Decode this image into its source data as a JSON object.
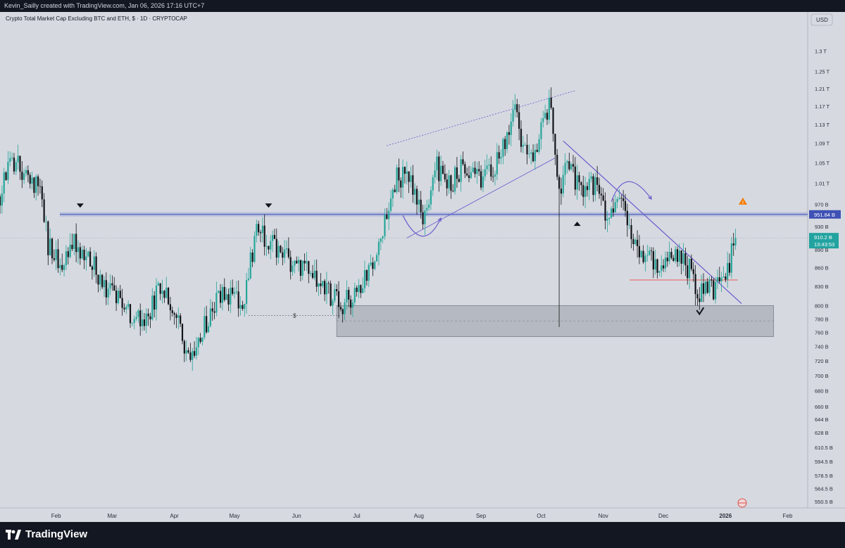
{
  "header": {
    "credit": "Kevin_Sailly created with TradingView.com, Jan 06, 2026 17:16 UTC+7"
  },
  "chart_title": "Crypto Total Market Cap Excluding BTC and ETH, $ · 1D · CRYPTOCAP",
  "currency_label": "USD",
  "brand": "TradingView",
  "colors": {
    "background": "#d6d9e0",
    "up": "#26a69a",
    "down": "#111418",
    "trendline": "#6a5acd",
    "support_line": "#e57373",
    "current_price": "#22a3a0",
    "level_tag": "#3f51b5",
    "zone": "#9aa0aa"
  },
  "chart_data": {
    "type": "candlestick",
    "y_scale": "log",
    "ylim_billions": [
      544,
      1400
    ],
    "y_ticks": [
      {
        "label": "1.3 T",
        "value": 1300
      },
      {
        "label": "1.25 T",
        "value": 1250
      },
      {
        "label": "1.21 T",
        "value": 1210
      },
      {
        "label": "1.17 T",
        "value": 1170
      },
      {
        "label": "1.13 T",
        "value": 1130
      },
      {
        "label": "1.09 T",
        "value": 1090
      },
      {
        "label": "1.05 T",
        "value": 1050
      },
      {
        "label": "1.01 T",
        "value": 1010
      },
      {
        "label": "970 B",
        "value": 970
      },
      {
        "label": "930 B",
        "value": 930
      },
      {
        "label": "890 B",
        "value": 890
      },
      {
        "label": "860 B",
        "value": 860
      },
      {
        "label": "830 B",
        "value": 830
      },
      {
        "label": "800 B",
        "value": 800
      },
      {
        "label": "780 B",
        "value": 780
      },
      {
        "label": "760 B",
        "value": 760
      },
      {
        "label": "740 B",
        "value": 740
      },
      {
        "label": "720 B",
        "value": 720
      },
      {
        "label": "700 B",
        "value": 700
      },
      {
        "label": "680 B",
        "value": 680
      },
      {
        "label": "660 B",
        "value": 660
      },
      {
        "label": "644 B",
        "value": 644
      },
      {
        "label": "628 B",
        "value": 628
      },
      {
        "label": "610.5 B",
        "value": 610.5
      },
      {
        "label": "594.5 B",
        "value": 594.5
      },
      {
        "label": "578.5 B",
        "value": 578.5
      },
      {
        "label": "564.5 B",
        "value": 564.5
      },
      {
        "label": "550.5 B",
        "value": 550.5
      }
    ],
    "x_ticks": [
      {
        "label": "Feb",
        "date": "2025-02-01"
      },
      {
        "label": "Mar",
        "date": "2025-03-01"
      },
      {
        "label": "Apr",
        "date": "2025-04-01"
      },
      {
        "label": "May",
        "date": "2025-05-01"
      },
      {
        "label": "Jun",
        "date": "2025-06-01"
      },
      {
        "label": "Jul",
        "date": "2025-07-01"
      },
      {
        "label": "Aug",
        "date": "2025-08-01"
      },
      {
        "label": "Sep",
        "date": "2025-09-01"
      },
      {
        "label": "Oct",
        "date": "2025-10-01"
      },
      {
        "label": "Nov",
        "date": "2025-11-01"
      },
      {
        "label": "Dec",
        "date": "2025-12-01"
      },
      {
        "label": "2026",
        "date": "2026-01-01"
      },
      {
        "label": "Feb",
        "date": "2026-02-01"
      }
    ],
    "xlim": [
      "2025-01-04",
      "2026-02-11"
    ],
    "current_price_label": "910.2 B",
    "countdown_label": "13:43:53",
    "current_price": 910.2,
    "level_label": "951.84 B",
    "level_price": 951.84,
    "dollar_marker_label": "$",
    "series": [
      {
        "date": "2025-01-04",
        "close": 985
      },
      {
        "date": "2025-01-10",
        "close": 1060
      },
      {
        "date": "2025-01-17",
        "close": 1030
      },
      {
        "date": "2025-01-24",
        "close": 990
      },
      {
        "date": "2025-01-28",
        "close": 900
      },
      {
        "date": "2025-02-03",
        "close": 860
      },
      {
        "date": "2025-02-10",
        "close": 900
      },
      {
        "date": "2025-02-17",
        "close": 885
      },
      {
        "date": "2025-02-24",
        "close": 835
      },
      {
        "date": "2025-03-03",
        "close": 810
      },
      {
        "date": "2025-03-10",
        "close": 790
      },
      {
        "date": "2025-03-17",
        "close": 780
      },
      {
        "date": "2025-03-24",
        "close": 820
      },
      {
        "date": "2025-04-01",
        "close": 800
      },
      {
        "date": "2025-04-07",
        "close": 720
      },
      {
        "date": "2025-04-14",
        "close": 760
      },
      {
        "date": "2025-04-21",
        "close": 800
      },
      {
        "date": "2025-04-28",
        "close": 820
      },
      {
        "date": "2025-05-05",
        "close": 800
      },
      {
        "date": "2025-05-12",
        "close": 920
      },
      {
        "date": "2025-05-19",
        "close": 900
      },
      {
        "date": "2025-05-26",
        "close": 880
      },
      {
        "date": "2025-06-02",
        "close": 860
      },
      {
        "date": "2025-06-09",
        "close": 850
      },
      {
        "date": "2025-06-16",
        "close": 820
      },
      {
        "date": "2025-06-23",
        "close": 800
      },
      {
        "date": "2025-06-30",
        "close": 815
      },
      {
        "date": "2025-07-07",
        "close": 860
      },
      {
        "date": "2025-07-14",
        "close": 920
      },
      {
        "date": "2025-07-21",
        "close": 1030
      },
      {
        "date": "2025-07-28",
        "close": 1010
      },
      {
        "date": "2025-08-03",
        "close": 935
      },
      {
        "date": "2025-08-10",
        "close": 1040
      },
      {
        "date": "2025-08-17",
        "close": 1010
      },
      {
        "date": "2025-08-24",
        "close": 1050
      },
      {
        "date": "2025-08-31",
        "close": 1020
      },
      {
        "date": "2025-09-07",
        "close": 1040
      },
      {
        "date": "2025-09-14",
        "close": 1110
      },
      {
        "date": "2025-09-18",
        "close": 1150
      },
      {
        "date": "2025-09-25",
        "close": 1050
      },
      {
        "date": "2025-10-01",
        "close": 1120
      },
      {
        "date": "2025-10-06",
        "close": 1180
      },
      {
        "date": "2025-10-10",
        "close": 1000
      },
      {
        "date": "2025-10-14",
        "close": 1050
      },
      {
        "date": "2025-10-21",
        "close": 990
      },
      {
        "date": "2025-10-28",
        "close": 1010
      },
      {
        "date": "2025-11-03",
        "close": 930
      },
      {
        "date": "2025-11-10",
        "close": 985
      },
      {
        "date": "2025-11-17",
        "close": 900
      },
      {
        "date": "2025-11-24",
        "close": 870
      },
      {
        "date": "2025-12-01",
        "close": 870
      },
      {
        "date": "2025-12-08",
        "close": 880
      },
      {
        "date": "2025-12-15",
        "close": 855
      },
      {
        "date": "2025-12-19",
        "close": 815
      },
      {
        "date": "2025-12-25",
        "close": 825
      },
      {
        "date": "2025-12-31",
        "close": 830
      },
      {
        "date": "2026-01-03",
        "close": 870
      },
      {
        "date": "2026-01-06",
        "close": 910.2
      }
    ],
    "annotations": {
      "horizontal_level": 951.84,
      "support_line": {
        "from": "2025-11-17",
        "to": "2026-01-05",
        "price": 840
      },
      "demand_zone": {
        "from": "2025-06-21",
        "to": "2026-01-25",
        "top": 800,
        "bottom": 754,
        "mid": 777
      },
      "rising_channel_upper": {
        "from": "2025-07-16",
        "from_price": 1085,
        "to": "2025-10-18",
        "to_price": 1205
      },
      "rising_channel_lower": {
        "from": "2025-07-26",
        "from_price": 910,
        "to": "2025-10-08",
        "to_price": 1060
      },
      "descending_line": {
        "from": "2025-10-12",
        "from_price": 1095,
        "to": "2026-01-09",
        "to_price": 803
      }
    }
  }
}
